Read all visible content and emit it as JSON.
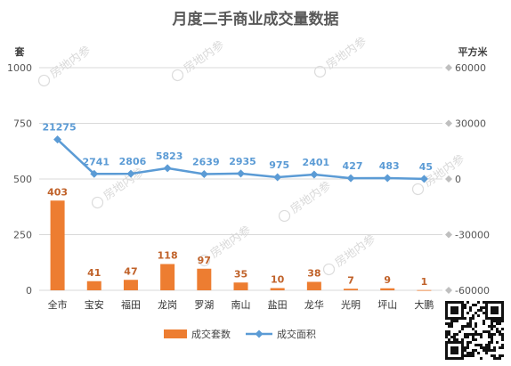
{
  "chart_data": {
    "type": "bar",
    "title": "月度二手商业成交量数据",
    "categories": [
      "全市",
      "宝安",
      "福田",
      "龙岗",
      "罗湖",
      "南山",
      "盐田",
      "龙华",
      "光明",
      "坪山",
      "大鹏"
    ],
    "series": [
      {
        "name": "成交套数",
        "type": "bar",
        "axis": "left",
        "color": "#ed7d31",
        "values": [
          403,
          41,
          47,
          118,
          97,
          35,
          10,
          38,
          7,
          9,
          1
        ]
      },
      {
        "name": "成交面积",
        "type": "line",
        "axis": "right",
        "color": "#5b9bd5",
        "values": [
          21275,
          2741,
          2806,
          5823,
          2639,
          2935,
          975,
          2401,
          427,
          483,
          45
        ]
      }
    ],
    "y_left": {
      "label": "套",
      "min": 0,
      "max": 1000,
      "ticks": [
        "0",
        "250",
        "500",
        "750",
        "1000"
      ]
    },
    "y_right": {
      "label": "平方米",
      "min": -60000,
      "max": 60000,
      "ticks": [
        "-60000",
        "-30000",
        "0",
        "30000",
        "60000"
      ]
    },
    "grid": true,
    "legend": "bottom",
    "watermark": "房地内参"
  }
}
